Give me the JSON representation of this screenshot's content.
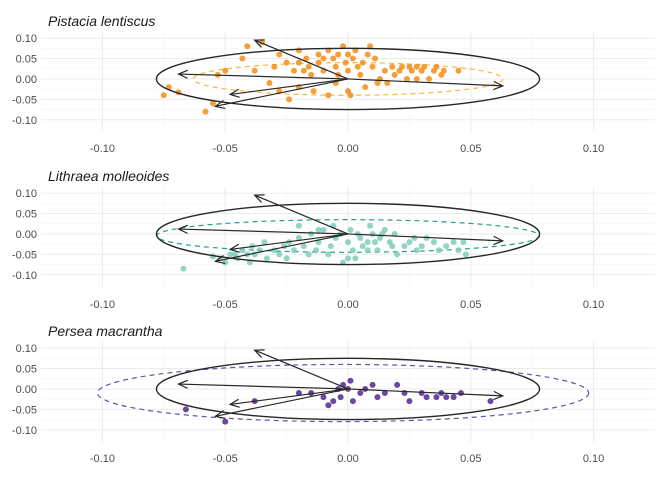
{
  "chart_data": [
    {
      "type": "scatter",
      "title": "Pistacia lentiscus",
      "xlim": [
        -0.125,
        0.125
      ],
      "ylim": [
        -0.13,
        0.115
      ],
      "x_ticks": [
        -0.1,
        -0.05,
        0.0,
        0.05,
        0.1
      ],
      "x_tick_labels": [
        "-0.10",
        "-0.05",
        "0.00",
        "0.05",
        "0.10"
      ],
      "y_ticks": [
        0.1,
        0.05,
        0.0,
        -0.05,
        -0.1
      ],
      "y_tick_labels": [
        "0.10",
        "0.05",
        "0.00",
        "-0.05",
        "-0.10"
      ],
      "grid": true,
      "point_color": "#f28e16",
      "species_ellipse": {
        "cx": 0.0,
        "cy": 0.0,
        "rx": 0.063,
        "ry": 0.04,
        "style": "dashed",
        "color": "#f5b93a"
      },
      "reference_ellipse": {
        "cx": 0.0,
        "cy": 0.0,
        "rx": 0.078,
        "ry": 0.075,
        "style": "solid",
        "color": "#262626"
      },
      "arrows": [
        {
          "x": -0.038,
          "y": 0.095
        },
        {
          "x": -0.069,
          "y": 0.012
        },
        {
          "x": -0.048,
          "y": -0.038
        },
        {
          "x": -0.054,
          "y": -0.067
        },
        {
          "x": 0.063,
          "y": -0.017
        }
      ],
      "points": [
        [
          -0.075,
          -0.04
        ],
        [
          -0.073,
          -0.02
        ],
        [
          -0.069,
          -0.033
        ],
        [
          -0.058,
          -0.08
        ],
        [
          -0.055,
          -0.06
        ],
        [
          -0.053,
          0.01
        ],
        [
          -0.05,
          0.02
        ],
        [
          -0.043,
          0.05
        ],
        [
          -0.041,
          0.08
        ],
        [
          -0.038,
          0.02
        ],
        [
          -0.035,
          0.09
        ],
        [
          -0.032,
          -0.01
        ],
        [
          -0.028,
          0.06
        ],
        [
          -0.03,
          0.03
        ],
        [
          -0.028,
          -0.03
        ],
        [
          -0.025,
          0.04
        ],
        [
          -0.024,
          -0.05
        ],
        [
          -0.022,
          0.02
        ],
        [
          -0.02,
          0.07
        ],
        [
          -0.02,
          -0.02
        ],
        [
          -0.017,
          0.05
        ],
        [
          -0.016,
          0.03
        ],
        [
          -0.015,
          0.01
        ],
        [
          -0.014,
          -0.03
        ],
        [
          -0.012,
          0.06
        ],
        [
          -0.012,
          0.04
        ],
        [
          -0.01,
          0.02
        ],
        [
          -0.008,
          0.07
        ],
        [
          -0.008,
          -0.04
        ],
        [
          -0.006,
          0.05
        ],
        [
          -0.005,
          0.03
        ],
        [
          -0.005,
          -0.01
        ],
        [
          -0.004,
          0.06
        ],
        [
          -0.002,
          0.08
        ],
        [
          -0.001,
          0.04
        ],
        [
          0.0,
          0.02
        ],
        [
          0.0,
          -0.03
        ],
        [
          0.002,
          0.05
        ],
        [
          0.003,
          0.07
        ],
        [
          0.004,
          0.03
        ],
        [
          0.005,
          0.01
        ],
        [
          0.006,
          0.04
        ],
        [
          0.007,
          -0.02
        ],
        [
          0.008,
          0.06
        ],
        [
          0.009,
          0.08
        ],
        [
          0.01,
          0.03
        ],
        [
          0.011,
          0.05
        ],
        [
          0.013,
          0.0
        ],
        [
          0.015,
          0.02
        ],
        [
          0.016,
          -0.01
        ],
        [
          0.018,
          0.03
        ],
        [
          0.019,
          0.01
        ],
        [
          0.021,
          0.02
        ],
        [
          0.022,
          0.03
        ],
        [
          0.024,
          0.0
        ],
        [
          0.025,
          0.03
        ],
        [
          0.026,
          0.02
        ],
        [
          0.028,
          0.03
        ],
        [
          0.028,
          0.0
        ],
        [
          0.03,
          0.02
        ],
        [
          0.031,
          0.03
        ],
        [
          0.033,
          0.0
        ],
        [
          0.035,
          0.02
        ],
        [
          0.036,
          0.03
        ],
        [
          0.038,
          0.01
        ],
        [
          0.039,
          0.02
        ],
        [
          0.045,
          0.02
        ],
        [
          -0.02,
          0.04
        ],
        [
          -0.018,
          0.02
        ],
        [
          -0.01,
          0.05
        ],
        [
          0.001,
          -0.04
        ],
        [
          0.012,
          -0.01
        ],
        [
          0.0,
          0.06
        ],
        [
          -0.004,
          0.01
        ]
      ]
    },
    {
      "type": "scatter",
      "title": "Lithraea molleoides",
      "xlim": [
        -0.125,
        0.125
      ],
      "ylim": [
        -0.13,
        0.115
      ],
      "x_ticks": [
        -0.1,
        -0.05,
        0.0,
        0.05,
        0.1
      ],
      "x_tick_labels": [
        "-0.10",
        "-0.05",
        "0.00",
        "0.05",
        "0.10"
      ],
      "y_ticks": [
        0.1,
        0.05,
        0.0,
        -0.05,
        -0.1
      ],
      "y_tick_labels": [
        "0.10",
        "0.05",
        "0.00",
        "-0.05",
        "-0.10"
      ],
      "grid": true,
      "point_color": "#7fcdbb",
      "species_ellipse": {
        "cx": 0.0,
        "cy": -0.005,
        "rx": 0.078,
        "ry": 0.04,
        "style": "dashed",
        "color": "#1f9e89"
      },
      "reference_ellipse": {
        "cx": 0.0,
        "cy": 0.0,
        "rx": 0.078,
        "ry": 0.075,
        "style": "solid",
        "color": "#262626"
      },
      "arrows": [
        {
          "x": -0.038,
          "y": 0.095
        },
        {
          "x": -0.069,
          "y": 0.012
        },
        {
          "x": -0.048,
          "y": -0.038
        },
        {
          "x": -0.054,
          "y": -0.067
        },
        {
          "x": 0.063,
          "y": -0.017
        }
      ],
      "points": [
        [
          -0.067,
          -0.085
        ],
        [
          -0.055,
          -0.055
        ],
        [
          -0.052,
          -0.06
        ],
        [
          -0.05,
          -0.07
        ],
        [
          -0.048,
          -0.05
        ],
        [
          -0.046,
          -0.05
        ],
        [
          -0.045,
          -0.06
        ],
        [
          -0.043,
          -0.04
        ],
        [
          -0.041,
          -0.05
        ],
        [
          -0.04,
          -0.07
        ],
        [
          -0.039,
          -0.03
        ],
        [
          -0.038,
          -0.05
        ],
        [
          -0.036,
          -0.04
        ],
        [
          -0.034,
          -0.02
        ],
        [
          -0.033,
          -0.06
        ],
        [
          -0.03,
          -0.04
        ],
        [
          -0.028,
          -0.05
        ],
        [
          -0.026,
          -0.03
        ],
        [
          -0.025,
          -0.06
        ],
        [
          -0.024,
          -0.02
        ],
        [
          -0.022,
          -0.04
        ],
        [
          -0.02,
          -0.01
        ],
        [
          -0.018,
          -0.03
        ],
        [
          -0.016,
          -0.05
        ],
        [
          -0.015,
          0.0
        ],
        [
          -0.013,
          -0.04
        ],
        [
          -0.012,
          -0.02
        ],
        [
          -0.01,
          0.01
        ],
        [
          -0.008,
          -0.05
        ],
        [
          -0.007,
          -0.03
        ],
        [
          -0.005,
          -0.01
        ],
        [
          -0.003,
          0.0
        ],
        [
          -0.002,
          -0.07
        ],
        [
          0.0,
          -0.06
        ],
        [
          0.0,
          -0.02
        ],
        [
          0.002,
          -0.04
        ],
        [
          0.003,
          -0.06
        ],
        [
          0.004,
          0.0
        ],
        [
          0.005,
          -0.01
        ],
        [
          0.006,
          -0.03
        ],
        [
          0.008,
          -0.04
        ],
        [
          0.008,
          -0.02
        ],
        [
          0.01,
          0.0
        ],
        [
          0.011,
          -0.02
        ],
        [
          0.012,
          -0.04
        ],
        [
          0.013,
          -0.01
        ],
        [
          0.015,
          0.01
        ],
        [
          0.017,
          -0.02
        ],
        [
          0.018,
          -0.03
        ],
        [
          0.019,
          0.0
        ],
        [
          0.02,
          -0.05
        ],
        [
          0.023,
          -0.03
        ],
        [
          0.025,
          -0.02
        ],
        [
          0.027,
          -0.01
        ],
        [
          0.028,
          -0.04
        ],
        [
          0.03,
          -0.03
        ],
        [
          0.032,
          -0.01
        ],
        [
          0.035,
          -0.02
        ],
        [
          0.037,
          -0.04
        ],
        [
          0.04,
          -0.03
        ],
        [
          0.043,
          -0.02
        ],
        [
          0.045,
          -0.04
        ],
        [
          0.047,
          -0.02
        ],
        [
          0.048,
          -0.05
        ],
        [
          -0.02,
          0.02
        ],
        [
          -0.012,
          0.01
        ],
        [
          -0.006,
          0.02
        ],
        [
          0.001,
          0.01
        ],
        [
          0.009,
          0.02
        ],
        [
          0.014,
          0.0
        ]
      ]
    },
    {
      "type": "scatter",
      "title": "Persea macrantha",
      "xlim": [
        -0.125,
        0.125
      ],
      "ylim": [
        -0.13,
        0.115
      ],
      "x_ticks": [
        -0.1,
        -0.05,
        0.0,
        0.05,
        0.1
      ],
      "x_tick_labels": [
        "-0.10",
        "-0.05",
        "0.00",
        "0.05",
        "0.10"
      ],
      "y_ticks": [
        0.1,
        0.05,
        0.0,
        -0.05,
        -0.1
      ],
      "y_tick_labels": [
        "0.10",
        "0.05",
        "0.00",
        "-0.05",
        "-0.10"
      ],
      "grid": true,
      "point_color": "#54278f",
      "species_ellipse": {
        "cx": -0.002,
        "cy": -0.01,
        "rx": 0.1,
        "ry": 0.07,
        "style": "dashed",
        "color": "#6a51a3"
      },
      "reference_ellipse": {
        "cx": 0.0,
        "cy": 0.0,
        "rx": 0.078,
        "ry": 0.075,
        "style": "solid",
        "color": "#262626"
      },
      "arrows": [
        {
          "x": -0.038,
          "y": 0.095
        },
        {
          "x": -0.069,
          "y": 0.012
        },
        {
          "x": -0.048,
          "y": -0.038
        },
        {
          "x": -0.054,
          "y": -0.067
        },
        {
          "x": 0.063,
          "y": -0.017
        }
      ],
      "points": [
        [
          -0.066,
          -0.05
        ],
        [
          -0.05,
          -0.08
        ],
        [
          -0.038,
          -0.03
        ],
        [
          -0.02,
          -0.01
        ],
        [
          -0.015,
          -0.01
        ],
        [
          -0.01,
          -0.02
        ],
        [
          -0.008,
          -0.04
        ],
        [
          -0.006,
          -0.03
        ],
        [
          -0.004,
          0.0
        ],
        [
          -0.003,
          -0.02
        ],
        [
          -0.002,
          0.01
        ],
        [
          0.0,
          0.0
        ],
        [
          0.001,
          0.02
        ],
        [
          0.002,
          -0.03
        ],
        [
          0.005,
          -0.01
        ],
        [
          0.007,
          0.0
        ],
        [
          0.01,
          0.01
        ],
        [
          0.012,
          -0.02
        ],
        [
          0.015,
          -0.01
        ],
        [
          0.02,
          0.01
        ],
        [
          0.023,
          -0.01
        ],
        [
          0.025,
          -0.03
        ],
        [
          0.03,
          -0.01
        ],
        [
          0.032,
          -0.02
        ],
        [
          0.036,
          -0.02
        ],
        [
          0.038,
          -0.01
        ],
        [
          0.04,
          -0.02
        ],
        [
          0.043,
          -0.02
        ],
        [
          0.046,
          -0.01
        ],
        [
          0.058,
          -0.03
        ]
      ]
    }
  ]
}
